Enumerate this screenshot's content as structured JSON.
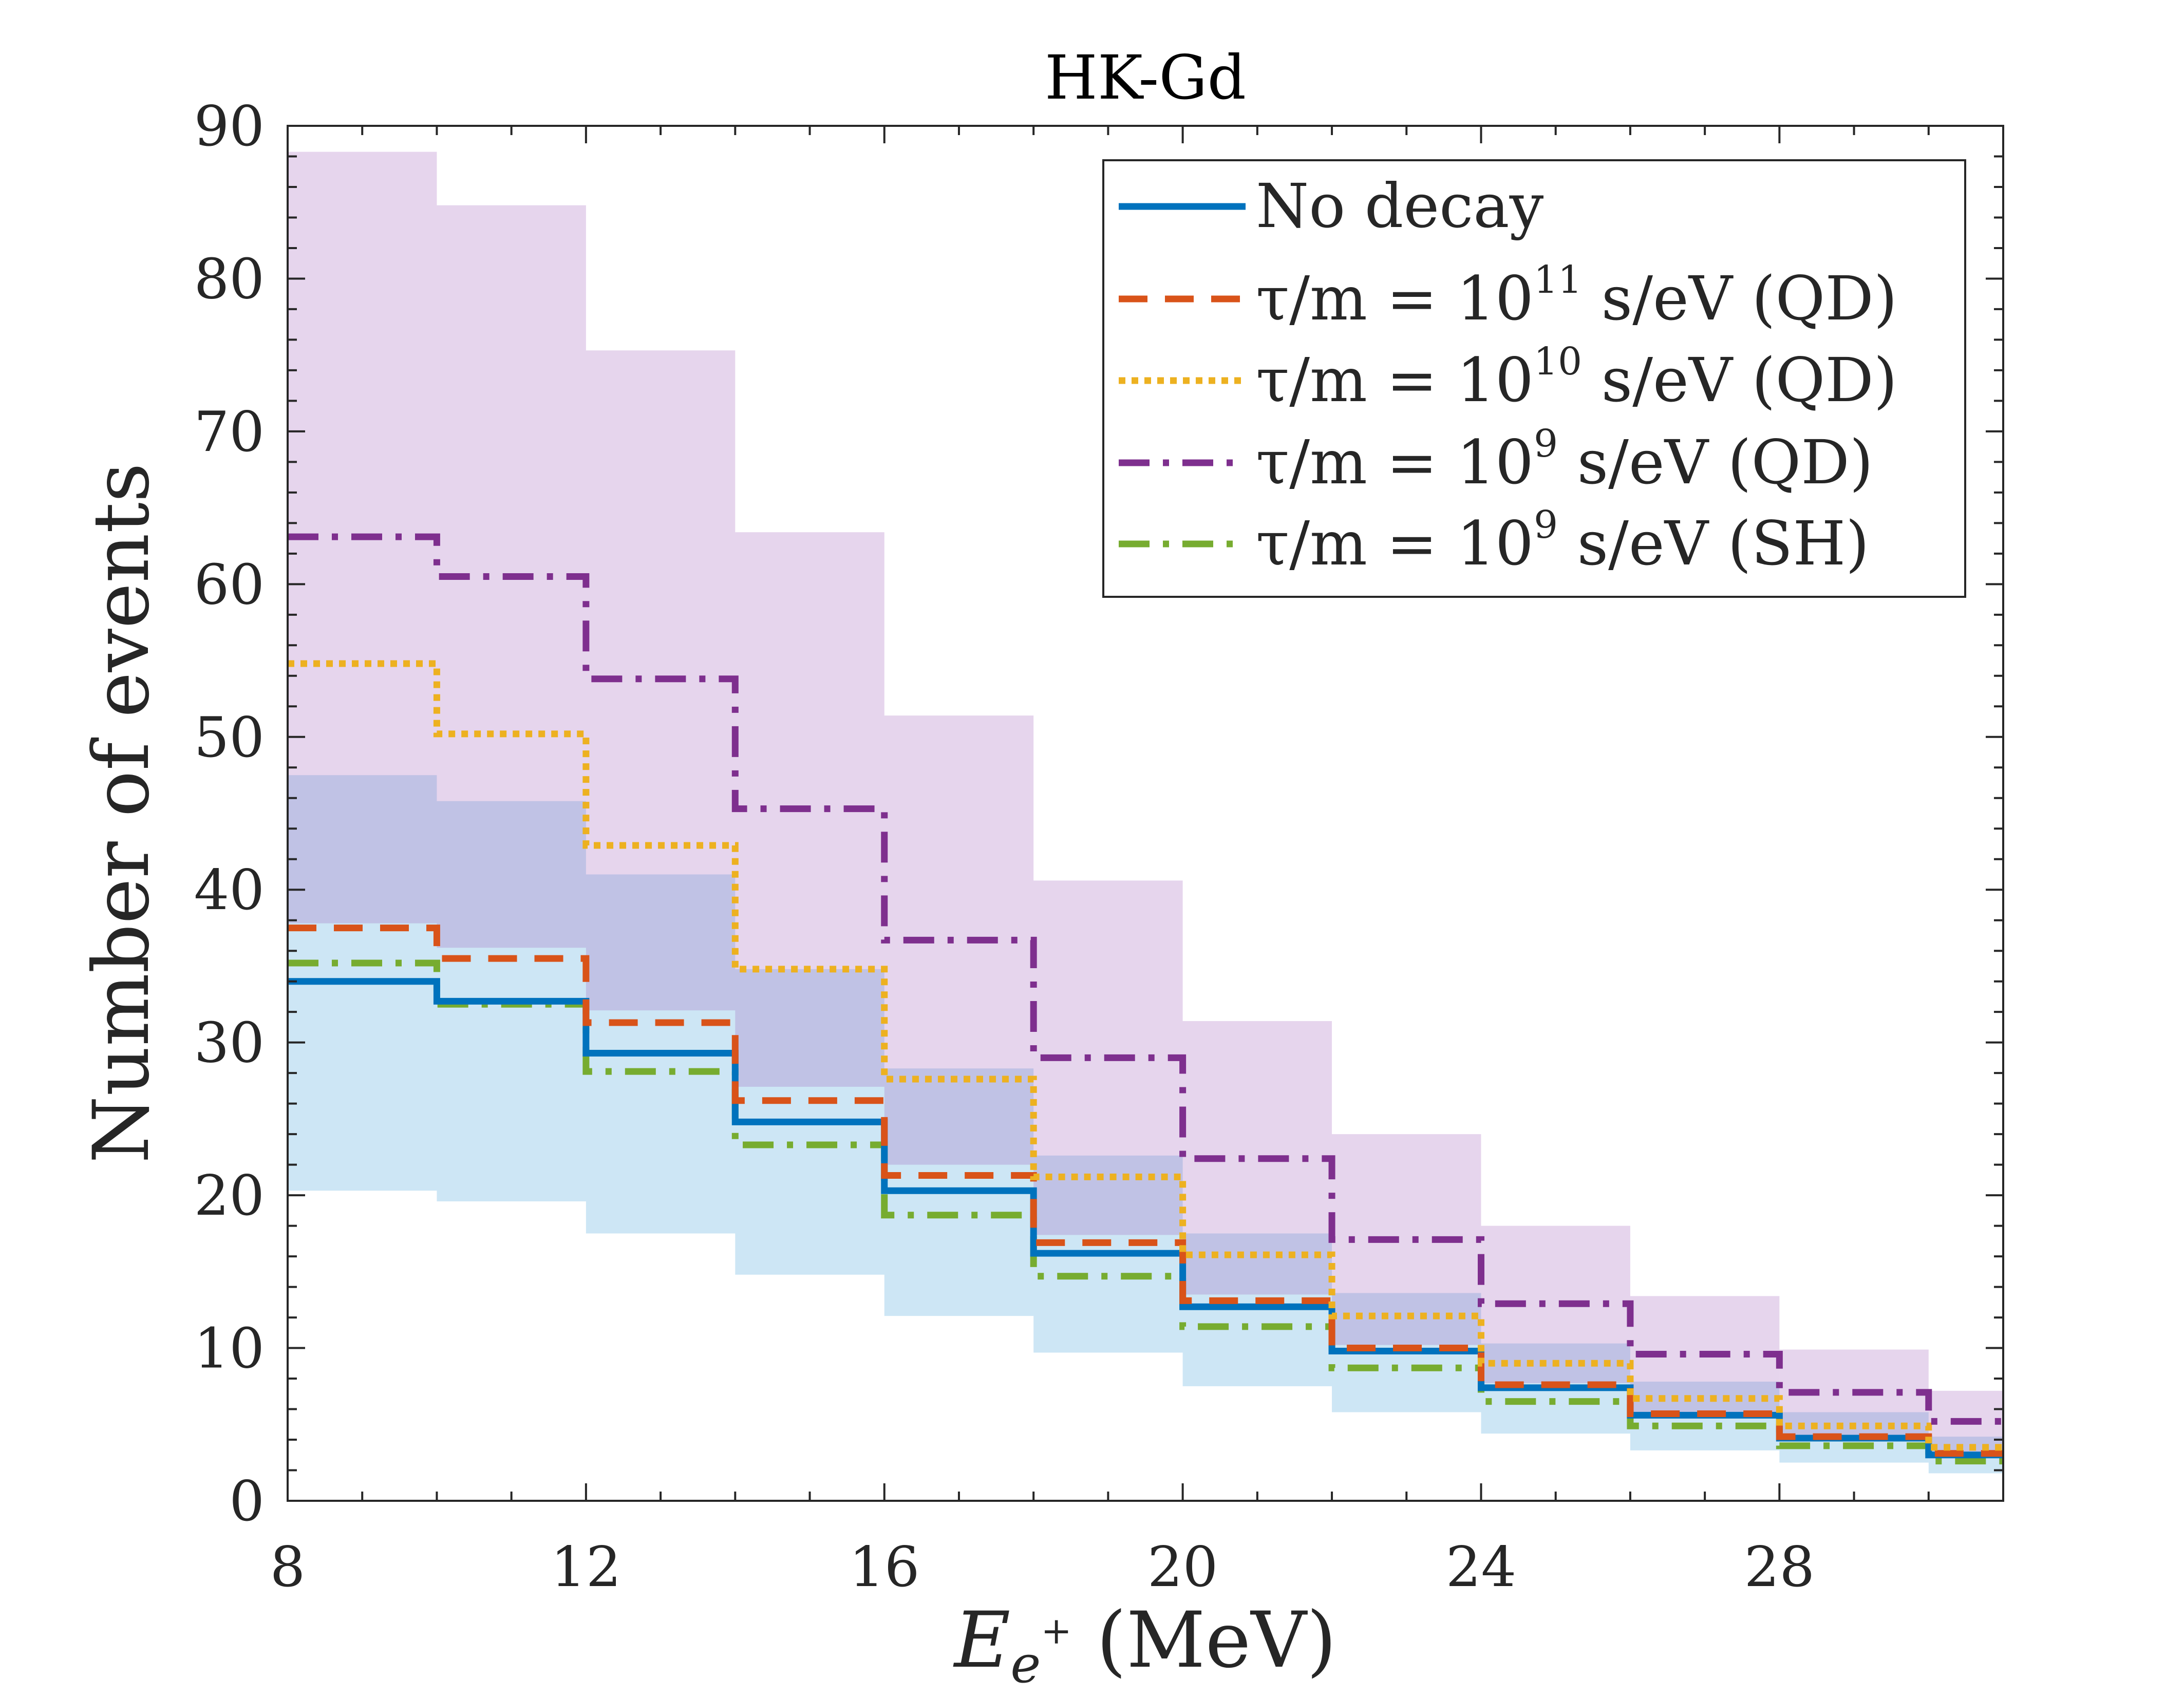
{
  "chart_data": {
    "type": "line",
    "title": "HK-Gd",
    "xlabel": {
      "main": "E",
      "sub": "e",
      "sup": "+",
      "unit": " (MeV)"
    },
    "ylabel": "Number of events",
    "xlim": [
      8,
      31
    ],
    "ylim": [
      0,
      90
    ],
    "xticks": [
      8,
      12,
      16,
      20,
      24,
      28
    ],
    "xtick_labels": [
      "8",
      "12",
      "16",
      "20",
      "24",
      "28"
    ],
    "yticks": [
      0,
      10,
      20,
      30,
      40,
      50,
      60,
      70,
      80,
      90
    ],
    "ytick_labels": [
      "0",
      "10",
      "20",
      "30",
      "40",
      "50",
      "60",
      "70",
      "80",
      "90"
    ],
    "bin_edges": [
      8,
      10,
      12,
      14,
      16,
      18,
      20,
      22,
      24,
      26,
      28,
      30,
      31
    ],
    "bands": [
      {
        "name": "No decay uncertainty",
        "color": "#7cbde4",
        "opacity": 0.38,
        "lower": [
          20.3,
          19.6,
          17.5,
          14.8,
          12.1,
          9.7,
          7.5,
          5.8,
          4.4,
          3.3,
          2.5,
          1.8
        ],
        "upper": [
          47.5,
          45.8,
          41.0,
          34.8,
          28.3,
          22.6,
          17.5,
          13.6,
          10.3,
          7.8,
          5.8,
          4.2
        ]
      },
      {
        "name": "QD 1e9 uncertainty",
        "color": "#9b59b6",
        "opacity": 0.25,
        "lower": [
          37.8,
          36.2,
          32.1,
          27.1,
          22.0,
          17.4,
          13.5,
          10.2,
          7.7,
          5.8,
          4.2,
          3.0
        ],
        "upper": [
          88.3,
          84.8,
          75.3,
          63.4,
          51.4,
          40.6,
          31.4,
          24.0,
          18.0,
          13.4,
          9.9,
          7.2
        ]
      }
    ],
    "series": [
      {
        "name": "No decay",
        "color": "#0072bd",
        "dash": "solid",
        "values": [
          34.0,
          32.7,
          29.3,
          24.8,
          20.3,
          16.2,
          12.7,
          9.8,
          7.4,
          5.6,
          4.1,
          3.0
        ]
      },
      {
        "name": "τ/m = 10^11 s/eV (QD)",
        "color": "#d95319",
        "dash": "dashed",
        "values": [
          37.5,
          35.5,
          31.3,
          26.2,
          21.3,
          16.9,
          13.1,
          10.0,
          7.6,
          5.7,
          4.2,
          3.1
        ]
      },
      {
        "name": "τ/m = 10^10 s/eV (QD)",
        "color": "#edb120",
        "dash": "dotted",
        "values": [
          54.8,
          50.2,
          42.9,
          34.8,
          27.6,
          21.2,
          16.1,
          12.1,
          9.0,
          6.7,
          4.9,
          3.5
        ]
      },
      {
        "name": "τ/m = 10^9 s/eV (QD)",
        "color": "#7e2f8e",
        "dash": "dashdot",
        "values": [
          63.1,
          60.5,
          53.8,
          45.3,
          36.7,
          29.0,
          22.4,
          17.1,
          12.9,
          9.6,
          7.1,
          5.2
        ]
      },
      {
        "name": "τ/m = 10^9 s/eV (SH)",
        "color": "#77ac30",
        "dash": "dashdot",
        "values": [
          35.2,
          32.5,
          28.1,
          23.3,
          18.7,
          14.7,
          11.4,
          8.7,
          6.5,
          4.9,
          3.6,
          2.6
        ]
      }
    ],
    "legend": {
      "position": "top-right",
      "entries": [
        {
          "text": "No decay"
        },
        {
          "prefix": "τ/m = 10",
          "exp": "11",
          "suffix": " s/eV (QD)"
        },
        {
          "prefix": "τ/m = 10",
          "exp": "10",
          "suffix": " s/eV (QD)"
        },
        {
          "prefix": "τ/m = 10",
          "exp": "9",
          "suffix": " s/eV (QD)"
        },
        {
          "prefix": "τ/m = 10",
          "exp": "9",
          "suffix": " s/eV (SH)"
        }
      ]
    }
  }
}
